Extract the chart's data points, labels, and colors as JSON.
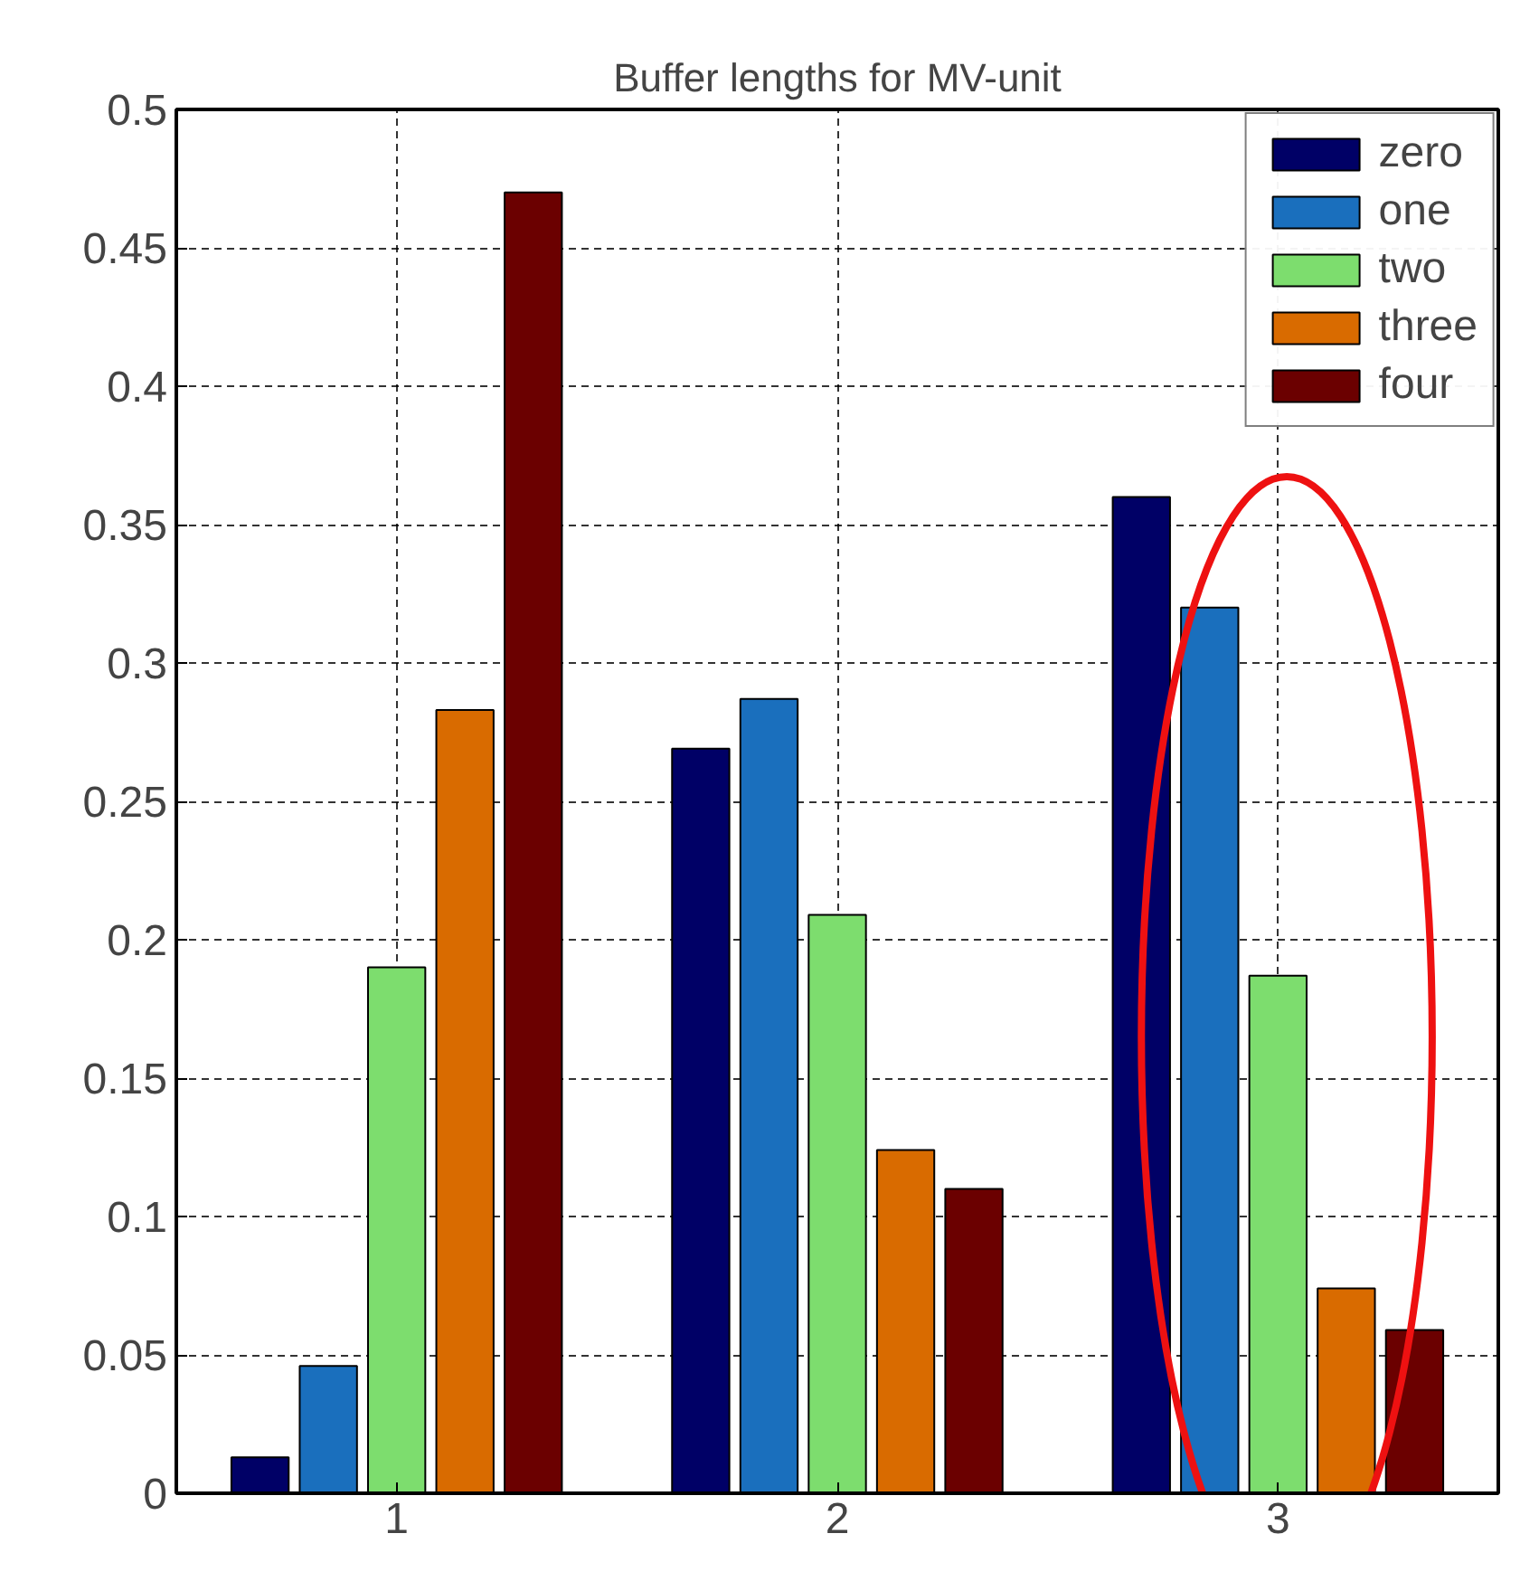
{
  "chart_data": {
    "type": "bar",
    "title": "Buffer lengths for MV-unit",
    "categories": [
      "1",
      "2",
      "3"
    ],
    "series": [
      {
        "name": "zero",
        "color": "#000066",
        "values": [
          0.013,
          0.269,
          0.36
        ]
      },
      {
        "name": "one",
        "color": "#1a6fbd",
        "values": [
          0.046,
          0.287,
          0.32
        ]
      },
      {
        "name": "two",
        "color": "#7ddd6e",
        "values": [
          0.19,
          0.209,
          0.187
        ]
      },
      {
        "name": "three",
        "color": "#d96b00",
        "values": [
          0.283,
          0.124,
          0.074
        ]
      },
      {
        "name": "four",
        "color": "#6b0000",
        "values": [
          0.47,
          0.11,
          0.059
        ]
      }
    ],
    "ylim": [
      0,
      0.5
    ],
    "yticks": [
      0,
      0.05,
      0.1,
      0.15,
      0.2,
      0.25,
      0.3,
      0.35,
      0.4,
      0.45,
      0.5
    ],
    "grid": true,
    "legend": "top right"
  }
}
